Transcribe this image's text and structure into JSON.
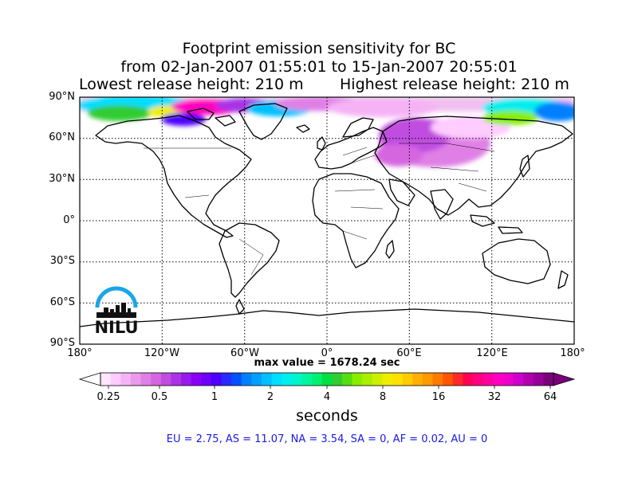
{
  "title": {
    "line1": "Footprint emission sensitivity for BC",
    "line2": "from 02-Jan-2007 01:55:01 to 15-Jan-2007 20:55:01",
    "lowest": "Lowest release height: 210 m",
    "highest": "Highest release height: 210 m"
  },
  "axes": {
    "lat_labels": [
      "90°N",
      "60°N",
      "30°N",
      "0°",
      "30°S",
      "60°S",
      "90°S"
    ],
    "lon_labels": [
      "180°",
      "120°W",
      "60°W",
      "0°",
      "60°E",
      "120°E",
      "180°"
    ]
  },
  "max_value": "max value = 1678.24 sec",
  "colorbar": {
    "ticks": [
      "0.25",
      "0.5",
      "1",
      "2",
      "4",
      "8",
      "16",
      "32",
      "64"
    ],
    "units": "seconds",
    "colors": [
      "#ffe6ff",
      "#ffccff",
      "#f5b3f5",
      "#eb99eb",
      "#e080e6",
      "#d666e0",
      "#c04de0",
      "#aa33e6",
      "#9a1aee",
      "#8a00f5",
      "#6f00f8",
      "#5000ff",
      "#2a2aff",
      "#0050ff",
      "#0080ff",
      "#00a0ff",
      "#00c0ff",
      "#00ddff",
      "#00eeee",
      "#00f5cc",
      "#00f5a0",
      "#00f070",
      "#00e040",
      "#33cc33",
      "#55dd11",
      "#88ee00",
      "#aaee00",
      "#ccf000",
      "#eeee00",
      "#ffe000",
      "#ffcc00",
      "#ffb000",
      "#ff9900",
      "#ff7a00",
      "#ff5500",
      "#ff2a2a",
      "#ff0055",
      "#ff0080",
      "#ff00a0",
      "#ff00c0",
      "#ee00cc",
      "#d000cc",
      "#b000b0",
      "#960096",
      "#7a007a"
    ]
  },
  "stats": "EU = 2.75,  AS = 11.07,  NA = 3.54,  SA = 0,  AF = 0.02,  AU = 0",
  "logo": {
    "text": "NILU"
  }
}
